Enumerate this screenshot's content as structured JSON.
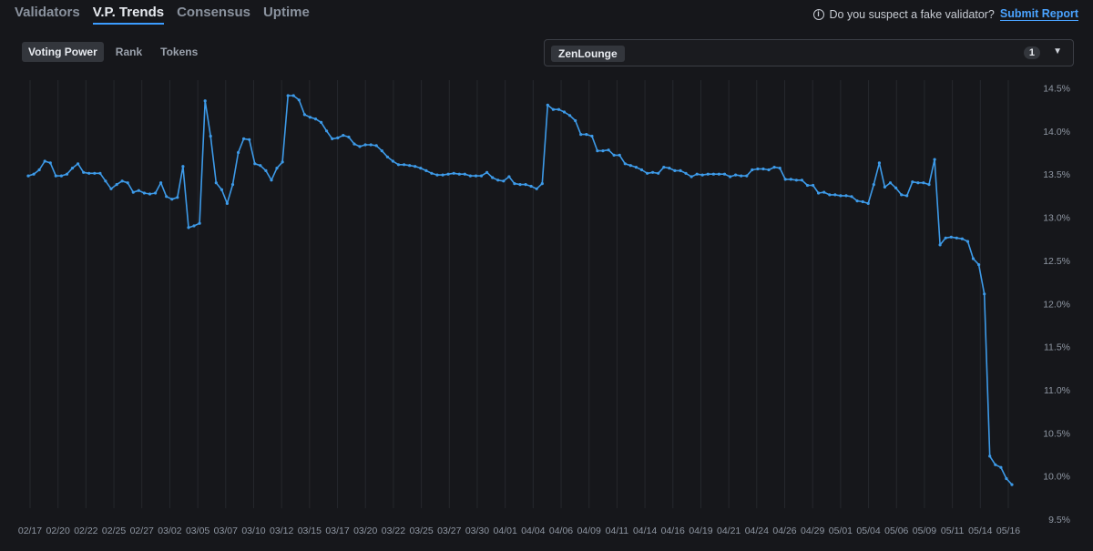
{
  "nav": {
    "tabs": [
      "Validators",
      "V.P. Trends",
      "Consensus",
      "Uptime"
    ],
    "active": 1
  },
  "report": {
    "icon": "info-icon",
    "question": "Do you suspect a fake validator?",
    "link": "Submit Report"
  },
  "subtabs": {
    "items": [
      "Voting Power",
      "Rank",
      "Tokens"
    ],
    "active": 0
  },
  "selector": {
    "chip": "ZenLounge",
    "count": "1",
    "caret_icon": "chevron-down-icon"
  },
  "colors": {
    "accent": "#3b9cff",
    "line": "#3d9ae8",
    "background": "#16171b"
  },
  "chart_data": {
    "type": "line",
    "ylim": [
      9.5,
      14.5
    ],
    "ytick_labels": [
      "14.5%",
      "14.0%",
      "13.5%",
      "13.0%",
      "12.5%",
      "12.0%",
      "11.5%",
      "11.0%",
      "10.5%",
      "10.0%",
      "9.5%"
    ],
    "xtick_labels": [
      "02/17",
      "02/20",
      "02/22",
      "02/25",
      "02/27",
      "03/02",
      "03/05",
      "03/07",
      "03/10",
      "03/12",
      "03/15",
      "03/17",
      "03/20",
      "03/22",
      "03/25",
      "03/27",
      "03/30",
      "04/01",
      "04/04",
      "04/06",
      "04/09",
      "04/11",
      "04/14",
      "04/16",
      "04/19",
      "04/21",
      "04/24",
      "04/26",
      "04/29",
      "05/01",
      "05/04",
      "05/06",
      "05/09",
      "05/11",
      "05/14",
      "05/16"
    ],
    "series": [
      {
        "values": [
          13.48,
          13.5,
          13.55,
          13.65,
          13.63,
          13.48,
          13.48,
          13.5,
          13.57,
          13.62,
          13.52,
          13.51,
          13.51,
          13.51,
          13.42,
          13.33,
          13.38,
          13.42,
          13.4,
          13.29,
          13.31,
          13.28,
          13.27,
          13.28,
          13.4,
          13.24,
          13.21,
          13.23,
          13.59,
          12.88,
          12.9,
          12.93,
          14.35,
          13.94,
          13.4,
          13.32,
          13.16,
          13.38,
          13.75,
          13.91,
          13.9,
          13.62,
          13.6,
          13.54,
          13.43,
          13.57,
          13.64,
          14.41,
          14.41,
          14.36,
          14.19,
          14.16,
          14.14,
          14.1,
          14.0,
          13.91,
          13.92,
          13.95,
          13.93,
          13.85,
          13.82,
          13.84,
          13.84,
          13.83,
          13.77,
          13.7,
          13.65,
          13.61,
          13.61,
          13.6,
          13.59,
          13.57,
          13.54,
          13.51,
          13.49,
          13.49,
          13.5,
          13.51,
          13.5,
          13.5,
          13.48,
          13.48,
          13.48,
          13.52,
          13.46,
          13.43,
          13.42,
          13.47,
          13.39,
          13.38,
          13.38,
          13.36,
          13.33,
          13.39,
          14.3,
          14.25,
          14.25,
          14.22,
          14.18,
          14.12,
          13.96,
          13.96,
          13.94,
          13.77,
          13.77,
          13.78,
          13.72,
          13.72,
          13.62,
          13.6,
          13.58,
          13.55,
          13.51,
          13.52,
          13.51,
          13.58,
          13.57,
          13.54,
          13.54,
          13.51,
          13.47,
          13.5,
          13.49,
          13.5,
          13.5,
          13.5,
          13.5,
          13.47,
          13.49,
          13.48,
          13.48,
          13.55,
          13.56,
          13.56,
          13.55,
          13.58,
          13.57,
          13.44,
          13.44,
          13.43,
          13.43,
          13.37,
          13.37,
          13.28,
          13.29,
          13.26,
          13.26,
          13.25,
          13.25,
          13.24,
          13.19,
          13.18,
          13.16,
          13.38,
          13.63,
          13.35,
          13.4,
          13.34,
          13.26,
          13.25,
          13.41,
          13.4,
          13.4,
          13.38,
          13.67,
          12.68,
          12.76,
          12.77,
          12.76,
          12.75,
          12.72,
          12.52,
          12.45,
          12.11,
          10.23,
          10.13,
          10.1,
          9.97,
          9.9
        ]
      }
    ]
  }
}
